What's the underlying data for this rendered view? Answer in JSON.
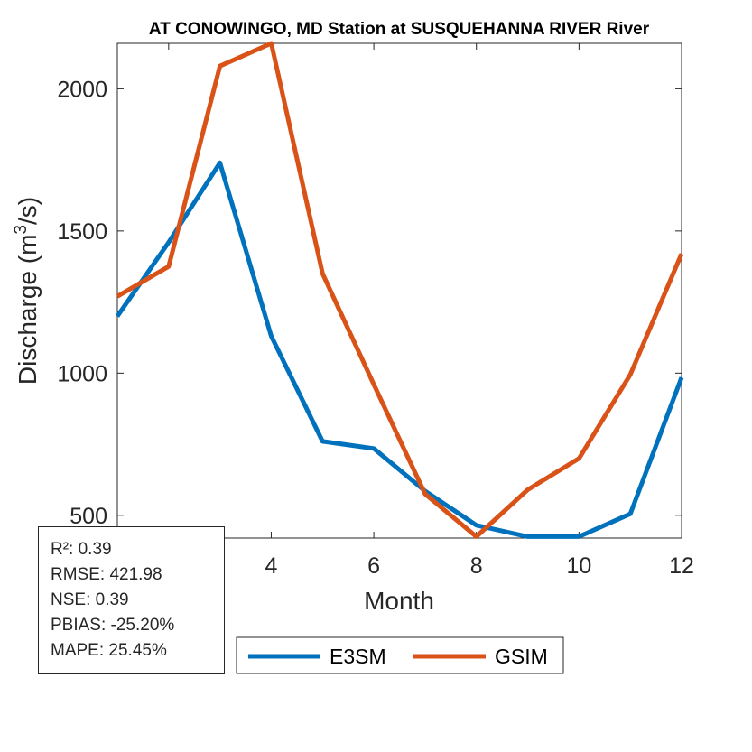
{
  "chart_data": {
    "type": "line",
    "title": "AT CONOWINGO, MD  Station at  SUSQUEHANNA RIVER  River",
    "xlabel": "Month",
    "ylabel": "Discharge (m³/s)",
    "ylabel_parts": {
      "pre": "Discharge (m",
      "sup": "3",
      "post": "/s)"
    },
    "xlim": [
      1,
      12
    ],
    "ylim": [
      420,
      2160
    ],
    "x_ticks": [
      2,
      4,
      6,
      8,
      10,
      12
    ],
    "x_tick_labels": [
      "",
      "4",
      "6",
      "8",
      "10",
      "12"
    ],
    "y_ticks": [
      500,
      1000,
      1500,
      2000
    ],
    "y_tick_labels": [
      "500",
      "1000",
      "1500",
      "2000"
    ],
    "x": [
      1,
      2,
      3,
      4,
      5,
      6,
      7,
      8,
      9,
      10,
      11,
      12
    ],
    "series": [
      {
        "name": "E3SM",
        "color": "#0072BD",
        "values": [
          1200,
          1460,
          1740,
          1130,
          760,
          735,
          585,
          465,
          425,
          425,
          505,
          985
        ]
      },
      {
        "name": "GSIM",
        "color": "#D95319",
        "values": [
          1270,
          1375,
          2080,
          2160,
          1350,
          960,
          575,
          425,
          590,
          700,
          995,
          1420
        ]
      }
    ],
    "grid": false,
    "legend_position": "bottom"
  },
  "stats": [
    {
      "label": "R²",
      "value": "0.39"
    },
    {
      "label": "RMSE",
      "value": "421.98"
    },
    {
      "label": "NSE",
      "value": "0.39"
    },
    {
      "label": "PBIAS",
      "value": "-25.20%"
    },
    {
      "label": "MAPE",
      "value": "25.45%"
    }
  ],
  "stats_lines": [
    "R²: 0.39",
    "RMSE: 421.98",
    "NSE: 0.39",
    "PBIAS: -25.20%",
    "MAPE: 25.45%"
  ]
}
